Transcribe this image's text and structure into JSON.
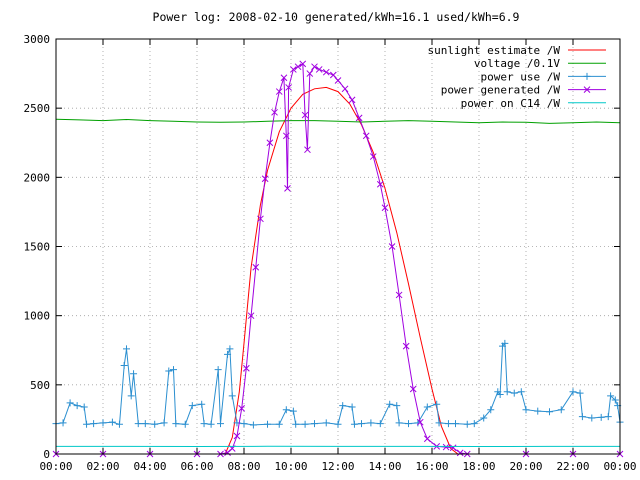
{
  "chart_data": {
    "type": "line",
    "title": "Power log: 2008-02-10 generated/kWh=16.1 used/kWh=6.9",
    "xlabel": "",
    "ylabel": "",
    "xlim": [
      0,
      24
    ],
    "ylim": [
      0,
      3000
    ],
    "x_ticks": [
      "00:00",
      "02:00",
      "04:00",
      "06:00",
      "08:00",
      "10:00",
      "12:00",
      "14:00",
      "16:00",
      "18:00",
      "20:00",
      "22:00",
      "00:00"
    ],
    "y_ticks": [
      0,
      500,
      1000,
      1500,
      2000,
      2500,
      3000
    ],
    "grid": true,
    "legend_position": "top-right",
    "series": [
      {
        "name": "sunlight estimate /W",
        "color": "#ff0000",
        "marker": "none",
        "points": [
          [
            7.2,
            0
          ],
          [
            7.5,
            120
          ],
          [
            7.8,
            450
          ],
          [
            8.0,
            800
          ],
          [
            8.3,
            1350
          ],
          [
            8.7,
            1800
          ],
          [
            9.0,
            2050
          ],
          [
            9.5,
            2330
          ],
          [
            10.0,
            2500
          ],
          [
            10.5,
            2600
          ],
          [
            11.0,
            2640
          ],
          [
            11.5,
            2650
          ],
          [
            12.0,
            2620
          ],
          [
            12.5,
            2530
          ],
          [
            13.0,
            2380
          ],
          [
            13.5,
            2180
          ],
          [
            14.0,
            1920
          ],
          [
            14.5,
            1600
          ],
          [
            15.0,
            1230
          ],
          [
            15.5,
            840
          ],
          [
            16.0,
            470
          ],
          [
            16.4,
            200
          ],
          [
            16.8,
            40
          ],
          [
            17.1,
            0
          ]
        ]
      },
      {
        "name": "voltage /0.1V",
        "color": "#00a000",
        "marker": "none",
        "points": [
          [
            0,
            2420
          ],
          [
            1,
            2415
          ],
          [
            2,
            2410
          ],
          [
            3,
            2418
          ],
          [
            4,
            2410
          ],
          [
            5,
            2405
          ],
          [
            6,
            2400
          ],
          [
            7,
            2398
          ],
          [
            8,
            2400
          ],
          [
            9,
            2405
          ],
          [
            10,
            2410
          ],
          [
            11,
            2410
          ],
          [
            12,
            2405
          ],
          [
            13,
            2400
          ],
          [
            14,
            2405
          ],
          [
            15,
            2410
          ],
          [
            16,
            2405
          ],
          [
            17,
            2400
          ],
          [
            18,
            2395
          ],
          [
            19,
            2400
          ],
          [
            20,
            2398
          ],
          [
            21,
            2390
          ],
          [
            22,
            2395
          ],
          [
            23,
            2400
          ],
          [
            24,
            2395
          ]
        ]
      },
      {
        "name": "power use /W",
        "color": "#2b8fd0",
        "marker": "plus",
        "points": [
          [
            0,
            220
          ],
          [
            0.3,
            225
          ],
          [
            0.6,
            370
          ],
          [
            0.9,
            350
          ],
          [
            1.2,
            340
          ],
          [
            1.3,
            215
          ],
          [
            1.6,
            220
          ],
          [
            2.0,
            225
          ],
          [
            2.4,
            230
          ],
          [
            2.7,
            215
          ],
          [
            2.9,
            640
          ],
          [
            3.0,
            760
          ],
          [
            3.2,
            420
          ],
          [
            3.3,
            580
          ],
          [
            3.5,
            220
          ],
          [
            3.8,
            220
          ],
          [
            4.2,
            215
          ],
          [
            4.6,
            225
          ],
          [
            4.8,
            600
          ],
          [
            5.0,
            610
          ],
          [
            5.1,
            220
          ],
          [
            5.5,
            215
          ],
          [
            5.8,
            350
          ],
          [
            6.2,
            360
          ],
          [
            6.3,
            220
          ],
          [
            6.6,
            215
          ],
          [
            6.9,
            610
          ],
          [
            7.0,
            220
          ],
          [
            7.3,
            720
          ],
          [
            7.4,
            760
          ],
          [
            7.5,
            420
          ],
          [
            7.7,
            225
          ],
          [
            8.0,
            220
          ],
          [
            8.4,
            210
          ],
          [
            9.0,
            215
          ],
          [
            9.5,
            215
          ],
          [
            9.8,
            320
          ],
          [
            10.1,
            310
          ],
          [
            10.2,
            215
          ],
          [
            10.6,
            215
          ],
          [
            11.0,
            220
          ],
          [
            11.5,
            225
          ],
          [
            12.0,
            215
          ],
          [
            12.2,
            350
          ],
          [
            12.6,
            340
          ],
          [
            12.7,
            215
          ],
          [
            13.0,
            220
          ],
          [
            13.4,
            225
          ],
          [
            13.8,
            220
          ],
          [
            14.2,
            360
          ],
          [
            14.5,
            350
          ],
          [
            14.6,
            225
          ],
          [
            15.0,
            220
          ],
          [
            15.4,
            225
          ],
          [
            15.8,
            340
          ],
          [
            16.2,
            360
          ],
          [
            16.3,
            225
          ],
          [
            16.7,
            220
          ],
          [
            17.0,
            220
          ],
          [
            17.5,
            215
          ],
          [
            17.8,
            220
          ],
          [
            18.2,
            260
          ],
          [
            18.5,
            320
          ],
          [
            18.8,
            450
          ],
          [
            18.9,
            430
          ],
          [
            19.0,
            780
          ],
          [
            19.1,
            800
          ],
          [
            19.2,
            450
          ],
          [
            19.5,
            440
          ],
          [
            19.8,
            450
          ],
          [
            20.0,
            320
          ],
          [
            20.5,
            310
          ],
          [
            21.0,
            305
          ],
          [
            21.5,
            320
          ],
          [
            22.0,
            450
          ],
          [
            22.3,
            440
          ],
          [
            22.4,
            270
          ],
          [
            22.8,
            260
          ],
          [
            23.2,
            265
          ],
          [
            23.5,
            270
          ],
          [
            23.6,
            420
          ],
          [
            23.8,
            390
          ],
          [
            23.9,
            350
          ],
          [
            24.0,
            230
          ]
        ]
      },
      {
        "name": "power generated /W",
        "color": "#a000e0",
        "marker": "cross",
        "points": [
          [
            0,
            0
          ],
          [
            2,
            0
          ],
          [
            4,
            0
          ],
          [
            6,
            0
          ],
          [
            7.0,
            0
          ],
          [
            7.3,
            10
          ],
          [
            7.5,
            40
          ],
          [
            7.7,
            130
          ],
          [
            7.9,
            330
          ],
          [
            8.1,
            620
          ],
          [
            8.3,
            1000
          ],
          [
            8.5,
            1350
          ],
          [
            8.7,
            1700
          ],
          [
            8.9,
            1990
          ],
          [
            9.1,
            2250
          ],
          [
            9.3,
            2470
          ],
          [
            9.5,
            2620
          ],
          [
            9.7,
            2720
          ],
          [
            9.8,
            2300
          ],
          [
            9.85,
            1920
          ],
          [
            9.9,
            2650
          ],
          [
            10.1,
            2780
          ],
          [
            10.3,
            2800
          ],
          [
            10.5,
            2820
          ],
          [
            10.6,
            2450
          ],
          [
            10.7,
            2200
          ],
          [
            10.8,
            2750
          ],
          [
            11.0,
            2800
          ],
          [
            11.2,
            2780
          ],
          [
            11.5,
            2760
          ],
          [
            11.8,
            2740
          ],
          [
            12.0,
            2700
          ],
          [
            12.3,
            2640
          ],
          [
            12.6,
            2560
          ],
          [
            12.9,
            2430
          ],
          [
            13.2,
            2300
          ],
          [
            13.5,
            2150
          ],
          [
            13.8,
            1950
          ],
          [
            14.0,
            1780
          ],
          [
            14.3,
            1500
          ],
          [
            14.6,
            1150
          ],
          [
            14.9,
            780
          ],
          [
            15.2,
            470
          ],
          [
            15.5,
            230
          ],
          [
            15.8,
            110
          ],
          [
            16.2,
            55
          ],
          [
            16.6,
            50
          ],
          [
            16.9,
            45
          ],
          [
            17.2,
            8
          ],
          [
            17.5,
            0
          ],
          [
            20,
            0
          ],
          [
            22,
            0
          ],
          [
            24,
            0
          ]
        ]
      },
      {
        "name": "power on C14 /W",
        "color": "#00c8c8",
        "marker": "none",
        "points": [
          [
            0,
            55
          ],
          [
            3,
            55
          ],
          [
            6,
            54
          ],
          [
            9,
            56
          ],
          [
            12,
            55
          ],
          [
            15,
            55
          ],
          [
            18,
            54
          ],
          [
            21,
            55
          ],
          [
            24,
            55
          ]
        ]
      }
    ]
  }
}
